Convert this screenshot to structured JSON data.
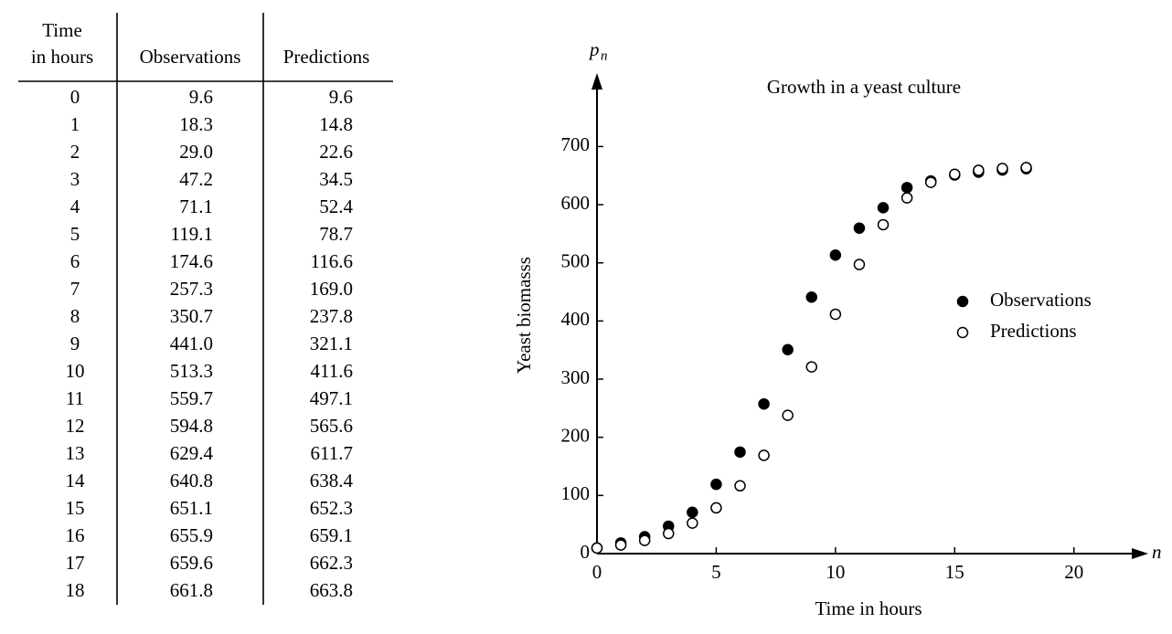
{
  "table": {
    "headers": [
      [
        "Time",
        "in hours"
      ],
      [
        "Observations"
      ],
      [
        "Predictions"
      ]
    ],
    "rows": [
      [
        "0",
        "9.6",
        "9.6"
      ],
      [
        "1",
        "18.3",
        "14.8"
      ],
      [
        "2",
        "29.0",
        "22.6"
      ],
      [
        "3",
        "47.2",
        "34.5"
      ],
      [
        "4",
        "71.1",
        "52.4"
      ],
      [
        "5",
        "119.1",
        "78.7"
      ],
      [
        "6",
        "174.6",
        "116.6"
      ],
      [
        "7",
        "257.3",
        "169.0"
      ],
      [
        "8",
        "350.7",
        "237.8"
      ],
      [
        "9",
        "441.0",
        "321.1"
      ],
      [
        "10",
        "513.3",
        "411.6"
      ],
      [
        "11",
        "559.7",
        "497.1"
      ],
      [
        "12",
        "594.8",
        "565.6"
      ],
      [
        "13",
        "629.4",
        "611.7"
      ],
      [
        "14",
        "640.8",
        "638.4"
      ],
      [
        "15",
        "651.1",
        "652.3"
      ],
      [
        "16",
        "655.9",
        "659.1"
      ],
      [
        "17",
        "659.6",
        "662.3"
      ],
      [
        "18",
        "661.8",
        "663.8"
      ]
    ]
  },
  "chart_data": {
    "type": "scatter",
    "title": "Growth in a yeast culture",
    "y_label": "Yeast biomasss",
    "x_label": "Time in hours",
    "y_symbol": "p",
    "y_symbol_subscript": "n",
    "x_symbol": "n",
    "x": [
      0,
      1,
      2,
      3,
      4,
      5,
      6,
      7,
      8,
      9,
      10,
      11,
      12,
      13,
      14,
      15,
      16,
      17,
      18
    ],
    "series": [
      {
        "name": "Observations",
        "color": "#000000",
        "filled": true,
        "values": [
          9.6,
          18.3,
          29.0,
          47.2,
          71.1,
          119.1,
          174.6,
          257.3,
          350.7,
          441.0,
          513.3,
          559.7,
          594.8,
          629.4,
          640.8,
          651.1,
          655.9,
          659.6,
          661.8
        ]
      },
      {
        "name": "Predictions",
        "color": "#000000",
        "filled": false,
        "values": [
          9.6,
          14.8,
          22.6,
          34.5,
          52.4,
          78.7,
          116.6,
          169.0,
          237.8,
          321.1,
          411.6,
          497.1,
          565.6,
          611.7,
          638.4,
          652.3,
          659.1,
          662.3,
          663.8
        ]
      }
    ],
    "xlim": [
      0,
      23
    ],
    "ylim": [
      0,
      820
    ],
    "xticks": [
      0,
      5,
      10,
      15,
      20
    ],
    "yticks": [
      0,
      100,
      200,
      300,
      400,
      500,
      600,
      700
    ],
    "grid": false,
    "legend": "right"
  }
}
